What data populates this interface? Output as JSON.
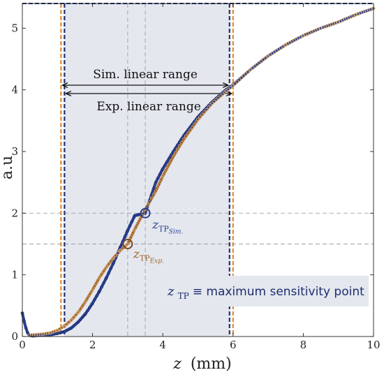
{
  "chart_data": {
    "type": "line",
    "title": "",
    "xlabel": "z (mm)",
    "xlabel_var": "z",
    "xlabel_unit": "(mm)",
    "ylabel": "a.u",
    "xlim": [
      0,
      10
    ],
    "ylim": [
      0,
      5.4
    ],
    "xticks": [
      "0",
      "2",
      "4",
      "6",
      "8",
      "10"
    ],
    "yticks": [
      "0",
      "1",
      "2",
      "3",
      "4",
      "5"
    ],
    "grid": false,
    "series": [
      {
        "key": "sim",
        "color": "#2a3f8f",
        "marker": "filled-circle",
        "x": [
          0,
          0.05,
          0.1,
          0.15,
          0.2,
          0.3,
          0.5,
          0.8,
          1.0,
          1.2,
          1.4,
          1.6,
          1.8,
          2.0,
          2.2,
          2.4,
          2.6,
          2.8,
          3.0,
          3.2,
          3.5,
          3.8,
          4.0,
          4.3,
          4.6,
          5.0,
          5.4,
          5.8,
          6.0,
          6.5,
          7.0,
          7.5,
          8.0,
          8.5,
          9.0,
          9.5,
          10.0
        ],
        "y": [
          0.38,
          0.25,
          0.14,
          0.06,
          0.02,
          0.01,
          0.02,
          0.03,
          0.05,
          0.08,
          0.14,
          0.24,
          0.37,
          0.54,
          0.74,
          0.96,
          1.2,
          1.46,
          1.72,
          1.96,
          2.0,
          2.5,
          2.72,
          3.0,
          3.26,
          3.56,
          3.8,
          4.0,
          4.08,
          4.33,
          4.55,
          4.73,
          4.88,
          5.0,
          5.1,
          5.22,
          5.32
        ]
      },
      {
        "key": "exp",
        "color": "#a0622a",
        "marker": "hollow-circle",
        "x": [
          0.2,
          0.4,
          0.6,
          0.8,
          1.0,
          1.2,
          1.4,
          1.6,
          1.8,
          2.0,
          2.2,
          2.4,
          2.6,
          2.8,
          3.0,
          3.2,
          3.5,
          3.8,
          4.0,
          4.3,
          4.6,
          5.0,
          5.4,
          5.8,
          6.0,
          6.5,
          7.0,
          7.5,
          8.0,
          8.5,
          9.0,
          9.5,
          10.0
        ],
        "y": [
          0.02,
          0.03,
          0.04,
          0.06,
          0.1,
          0.17,
          0.27,
          0.4,
          0.57,
          0.76,
          0.96,
          1.13,
          1.28,
          1.4,
          1.5,
          1.74,
          2.06,
          2.36,
          2.6,
          2.92,
          3.2,
          3.52,
          3.78,
          3.98,
          4.07,
          4.33,
          4.55,
          4.73,
          4.88,
          5.0,
          5.1,
          5.22,
          5.32
        ]
      }
    ],
    "sim_range": {
      "x": [
        1.2,
        5.9
      ]
    },
    "exp_range": {
      "x": [
        1.1,
        6.0
      ]
    },
    "sim_tp": {
      "x": 3.5,
      "y": 2.0
    },
    "exp_tp": {
      "x": 3.0,
      "y": 1.5
    },
    "sim_tp_label": {
      "base": "z",
      "sub": "TP",
      "subsub": "Sim."
    },
    "exp_tp_label": {
      "base": "z",
      "sub": "TP",
      "subsub": "Exp."
    },
    "annotations": {
      "sim_range_label": "Sim. linear range",
      "exp_range_label": "Exp. linear range"
    },
    "legend": {
      "base": "z",
      "sub": "TP",
      "text": "≡ maximum sensitivity point",
      "position": "bottom-right"
    },
    "colors": {
      "sim": "#2a3f8f",
      "exp": "#a0622a",
      "shade": "#e4e7ee",
      "exp_line": "#e08a2e",
      "sim_line": "#1f2f6e",
      "guide": "#9aa0ad"
    }
  }
}
